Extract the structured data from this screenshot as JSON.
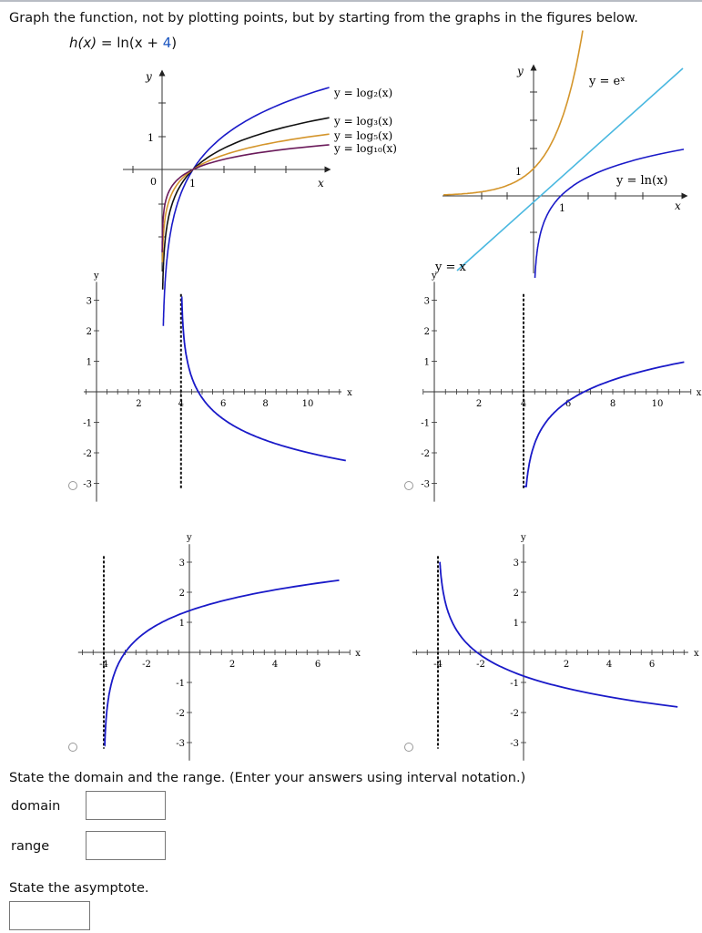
{
  "prompt": "Graph the function, not by plotting points, but by starting from the graphs in the figures below.",
  "function": {
    "lhs": "h(x)",
    "eq": " = ",
    "fn_open": "ln(x + ",
    "shift": "4",
    "fn_close": ")"
  },
  "ref_left": {
    "y_axis": "y",
    "x_axis": "x",
    "tick_y": "1",
    "tick_x": "1",
    "origin": "0",
    "labels": [
      "y = log₂(x)",
      "y = log₃(x)",
      "y = log₅(x)",
      "y = log₁₀(x)"
    ]
  },
  "ref_right": {
    "y_axis": "y",
    "x_axis": "x",
    "tick_y": "1",
    "tick_x": "1",
    "exp_label": "y = eˣ",
    "ln_label": "y = ln(x)",
    "line_label": "y = x"
  },
  "options": [
    {
      "id": "A",
      "y_ticks": [
        "3",
        "2",
        "1",
        "-1",
        "-2",
        "-3"
      ],
      "x_ticks": [
        "2",
        "4",
        "6",
        "8",
        "10"
      ],
      "asymptote": "4"
    },
    {
      "id": "B",
      "y_ticks": [
        "3",
        "2",
        "1",
        "-1",
        "-2",
        "-3"
      ],
      "x_ticks": [
        "2",
        "4",
        "6",
        "8",
        "10"
      ],
      "asymptote": "4"
    },
    {
      "id": "C",
      "y_ticks": [
        "3",
        "2",
        "1",
        "-1",
        "-2",
        "-3"
      ],
      "x_ticks": [
        "-4",
        "-2",
        "2",
        "4",
        "6"
      ],
      "asymptote": "-4"
    },
    {
      "id": "D",
      "y_ticks": [
        "3",
        "2",
        "1",
        "-1",
        "-2",
        "-3"
      ],
      "x_ticks": [
        "-4",
        "-2",
        "2",
        "4",
        "6"
      ],
      "asymptote": "-4"
    }
  ],
  "axis_letters": {
    "x": "x",
    "y": "y"
  },
  "domain_range_prompt": "State the domain and the range. (Enter your answers using interval notation.)",
  "domain_label": "domain",
  "range_label": "range",
  "domain_value": "",
  "range_value": "",
  "asymptote_prompt": "State the asymptote.",
  "asymptote_value": "",
  "colors": {
    "curve_blue": "#1a1ac8",
    "log3_black": "#111111",
    "log5_orange": "#d4952b",
    "log10_purple": "#6a1a5a",
    "exp_orange": "#d4952b",
    "line_cyan": "#4ab8e0",
    "text_blue": "#1a55c0"
  }
}
